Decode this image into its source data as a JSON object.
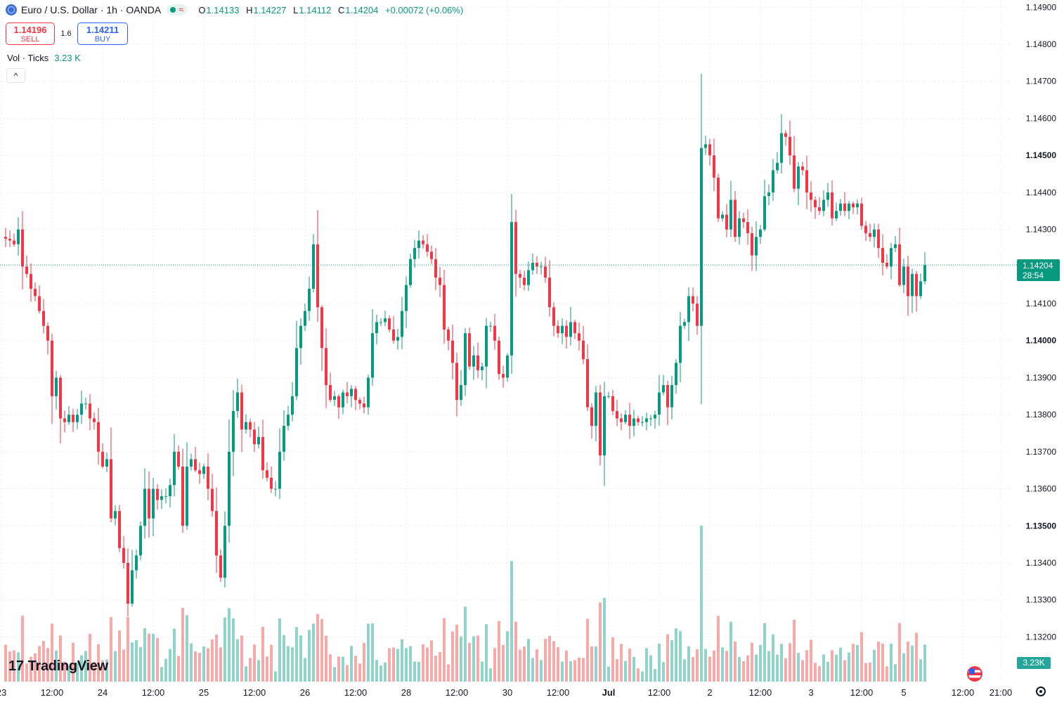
{
  "legend": {
    "title": "Euro / U.S. Dollar · 1h · OANDA",
    "wave_glyph": "≈",
    "ohlc": {
      "o_label": "O",
      "o": "1.14133",
      "h_label": "H",
      "h": "1.14227",
      "l_label": "L",
      "l": "1.14112",
      "c_label": "C",
      "c": "1.14204",
      "change": "+0.00072 (+0.06%)"
    }
  },
  "trade": {
    "sell_price": "1.14196",
    "sell_label": "SELL",
    "spread": "1.6",
    "buy_price": "1.14211",
    "buy_label": "BUY"
  },
  "volume_legend": {
    "label": "Vol · Ticks",
    "value": "3.23 K"
  },
  "collapse_glyph": "^",
  "logo": {
    "text": "TradingView",
    "glyph": "17"
  },
  "price_tag": {
    "price": "1.14204",
    "countdown": "28:54"
  },
  "volume_tag": "3.23K",
  "colors": {
    "up": "#089981",
    "down": "#f23645",
    "vol_up": "#8fd3cb",
    "vol_down": "#f7a9a7",
    "grid": "#e9ebf0"
  },
  "chart_data": {
    "type": "candlestick",
    "symbol": "EURUSD",
    "interval": "1h",
    "ylim": [
      1.1318,
      1.1491
    ],
    "y_ticks": [
      "1.14900",
      "1.14800",
      "1.14700",
      "1.14600",
      "1.14500",
      "1.14400",
      "1.14300",
      "1.14200",
      "1.14100",
      "1.14000",
      "1.13900",
      "1.13800",
      "1.13700",
      "1.13600",
      "1.13500",
      "1.13400",
      "1.13300",
      "1.13200"
    ],
    "y_ticks_bold": [
      "1.14500",
      "1.14000",
      "1.13500"
    ],
    "current_price": 1.14204,
    "x_labels": [
      {
        "label": "23",
        "bar": -1
      },
      {
        "label": "12:00",
        "bar": 11
      },
      {
        "label": "24",
        "bar": 23
      },
      {
        "label": "12:00",
        "bar": 35
      },
      {
        "label": "25",
        "bar": 47
      },
      {
        "label": "12:00",
        "bar": 59
      },
      {
        "label": "26",
        "bar": 71
      },
      {
        "label": "12:00",
        "bar": 83
      },
      {
        "label": "28",
        "bar": 95
      },
      {
        "label": "12:00",
        "bar": 107
      },
      {
        "label": "30",
        "bar": 119
      },
      {
        "label": "12:00",
        "bar": 131
      },
      {
        "label": "Jul",
        "bar": 143,
        "bold": true
      },
      {
        "label": "12:00",
        "bar": 155
      },
      {
        "label": "2",
        "bar": 167
      },
      {
        "label": "12:00",
        "bar": 179
      },
      {
        "label": "3",
        "bar": 191
      },
      {
        "label": "12:00",
        "bar": 203
      },
      {
        "label": "5",
        "bar": 213
      },
      {
        "label": "12:00",
        "bar": 227
      },
      {
        "label": "21:00",
        "bar": 236
      }
    ],
    "closes": [
      1.14275,
      1.1427,
      1.1426,
      1.143,
      1.142,
      1.1418,
      1.1414,
      1.1412,
      1.1408,
      1.1404,
      1.14,
      1.1385,
      1.139,
      1.1379,
      1.1378,
      1.138,
      1.1378,
      1.138,
      1.1383,
      1.1383,
      1.1379,
      1.1378,
      1.137,
      1.1366,
      1.1368,
      1.1352,
      1.1354,
      1.1344,
      1.134,
      1.1329,
      1.1338,
      1.1342,
      1.135,
      1.136,
      1.1352,
      1.136,
      1.1357,
      1.1358,
      1.1358,
      1.1361,
      1.137,
      1.1366,
      1.135,
      1.1366,
      1.1368,
      1.1365,
      1.1364,
      1.1366,
      1.136,
      1.1354,
      1.1342,
      1.1336,
      1.135,
      1.137,
      1.1381,
      1.1386,
      1.1376,
      1.1378,
      1.1376,
      1.1372,
      1.1374,
      1.1365,
      1.1363,
      1.136,
      1.136,
      1.137,
      1.1377,
      1.138,
      1.1385,
      1.1398,
      1.1404,
      1.1408,
      1.1414,
      1.1426,
      1.1409,
      1.1398,
      1.1388,
      1.1384,
      1.1385,
      1.1382,
      1.1386,
      1.1385,
      1.1387,
      1.1384,
      1.1383,
      1.1382,
      1.139,
      1.1402,
      1.1405,
      1.1405,
      1.1406,
      1.1403,
      1.14,
      1.1401,
      1.1408,
      1.1415,
      1.1422,
      1.1425,
      1.1427,
      1.1426,
      1.1424,
      1.1422,
      1.1417,
      1.1415,
      1.1403,
      1.14,
      1.1394,
      1.1384,
      1.1388,
      1.1402,
      1.1393,
      1.1396,
      1.1392,
      1.1393,
      1.1404,
      1.1404,
      1.14,
      1.1391,
      1.139,
      1.1396,
      1.1432,
      1.1418,
      1.1417,
      1.1415,
      1.1419,
      1.1421,
      1.142,
      1.142,
      1.1417,
      1.1409,
      1.1404,
      1.1402,
      1.1404,
      1.1401,
      1.1405,
      1.1402,
      1.14,
      1.1395,
      1.1382,
      1.1377,
      1.1386,
      1.1369,
      1.1385,
      1.1385,
      1.1381,
      1.1379,
      1.1378,
      1.138,
      1.1377,
      1.1379,
      1.1378,
      1.1378,
      1.1379,
      1.1379,
      1.138,
      1.1386,
      1.1388,
      1.1382,
      1.1388,
      1.1394,
      1.1404,
      1.1405,
      1.1412,
      1.141,
      1.1404,
      1.1452,
      1.1453,
      1.145,
      1.1444,
      1.1433,
      1.1434,
      1.143,
      1.1438,
      1.1428,
      1.1433,
      1.1432,
      1.1429,
      1.1423,
      1.1428,
      1.143,
      1.1439,
      1.144,
      1.1446,
      1.1448,
      1.1456,
      1.1455,
      1.145,
      1.1441,
      1.1447,
      1.1446,
      1.144,
      1.1438,
      1.1436,
      1.1435,
      1.1438,
      1.144,
      1.1433,
      1.1435,
      1.1437,
      1.1435,
      1.1437,
      1.1436,
      1.1437,
      1.1431,
      1.1429,
      1.1428,
      1.143,
      1.1425,
      1.1421,
      1.142,
      1.1425,
      1.1426,
      1.1415,
      1.142,
      1.1412,
      1.1418,
      1.1412,
      1.1416,
      1.14204
    ],
    "volume_max_label": "3.23K"
  }
}
